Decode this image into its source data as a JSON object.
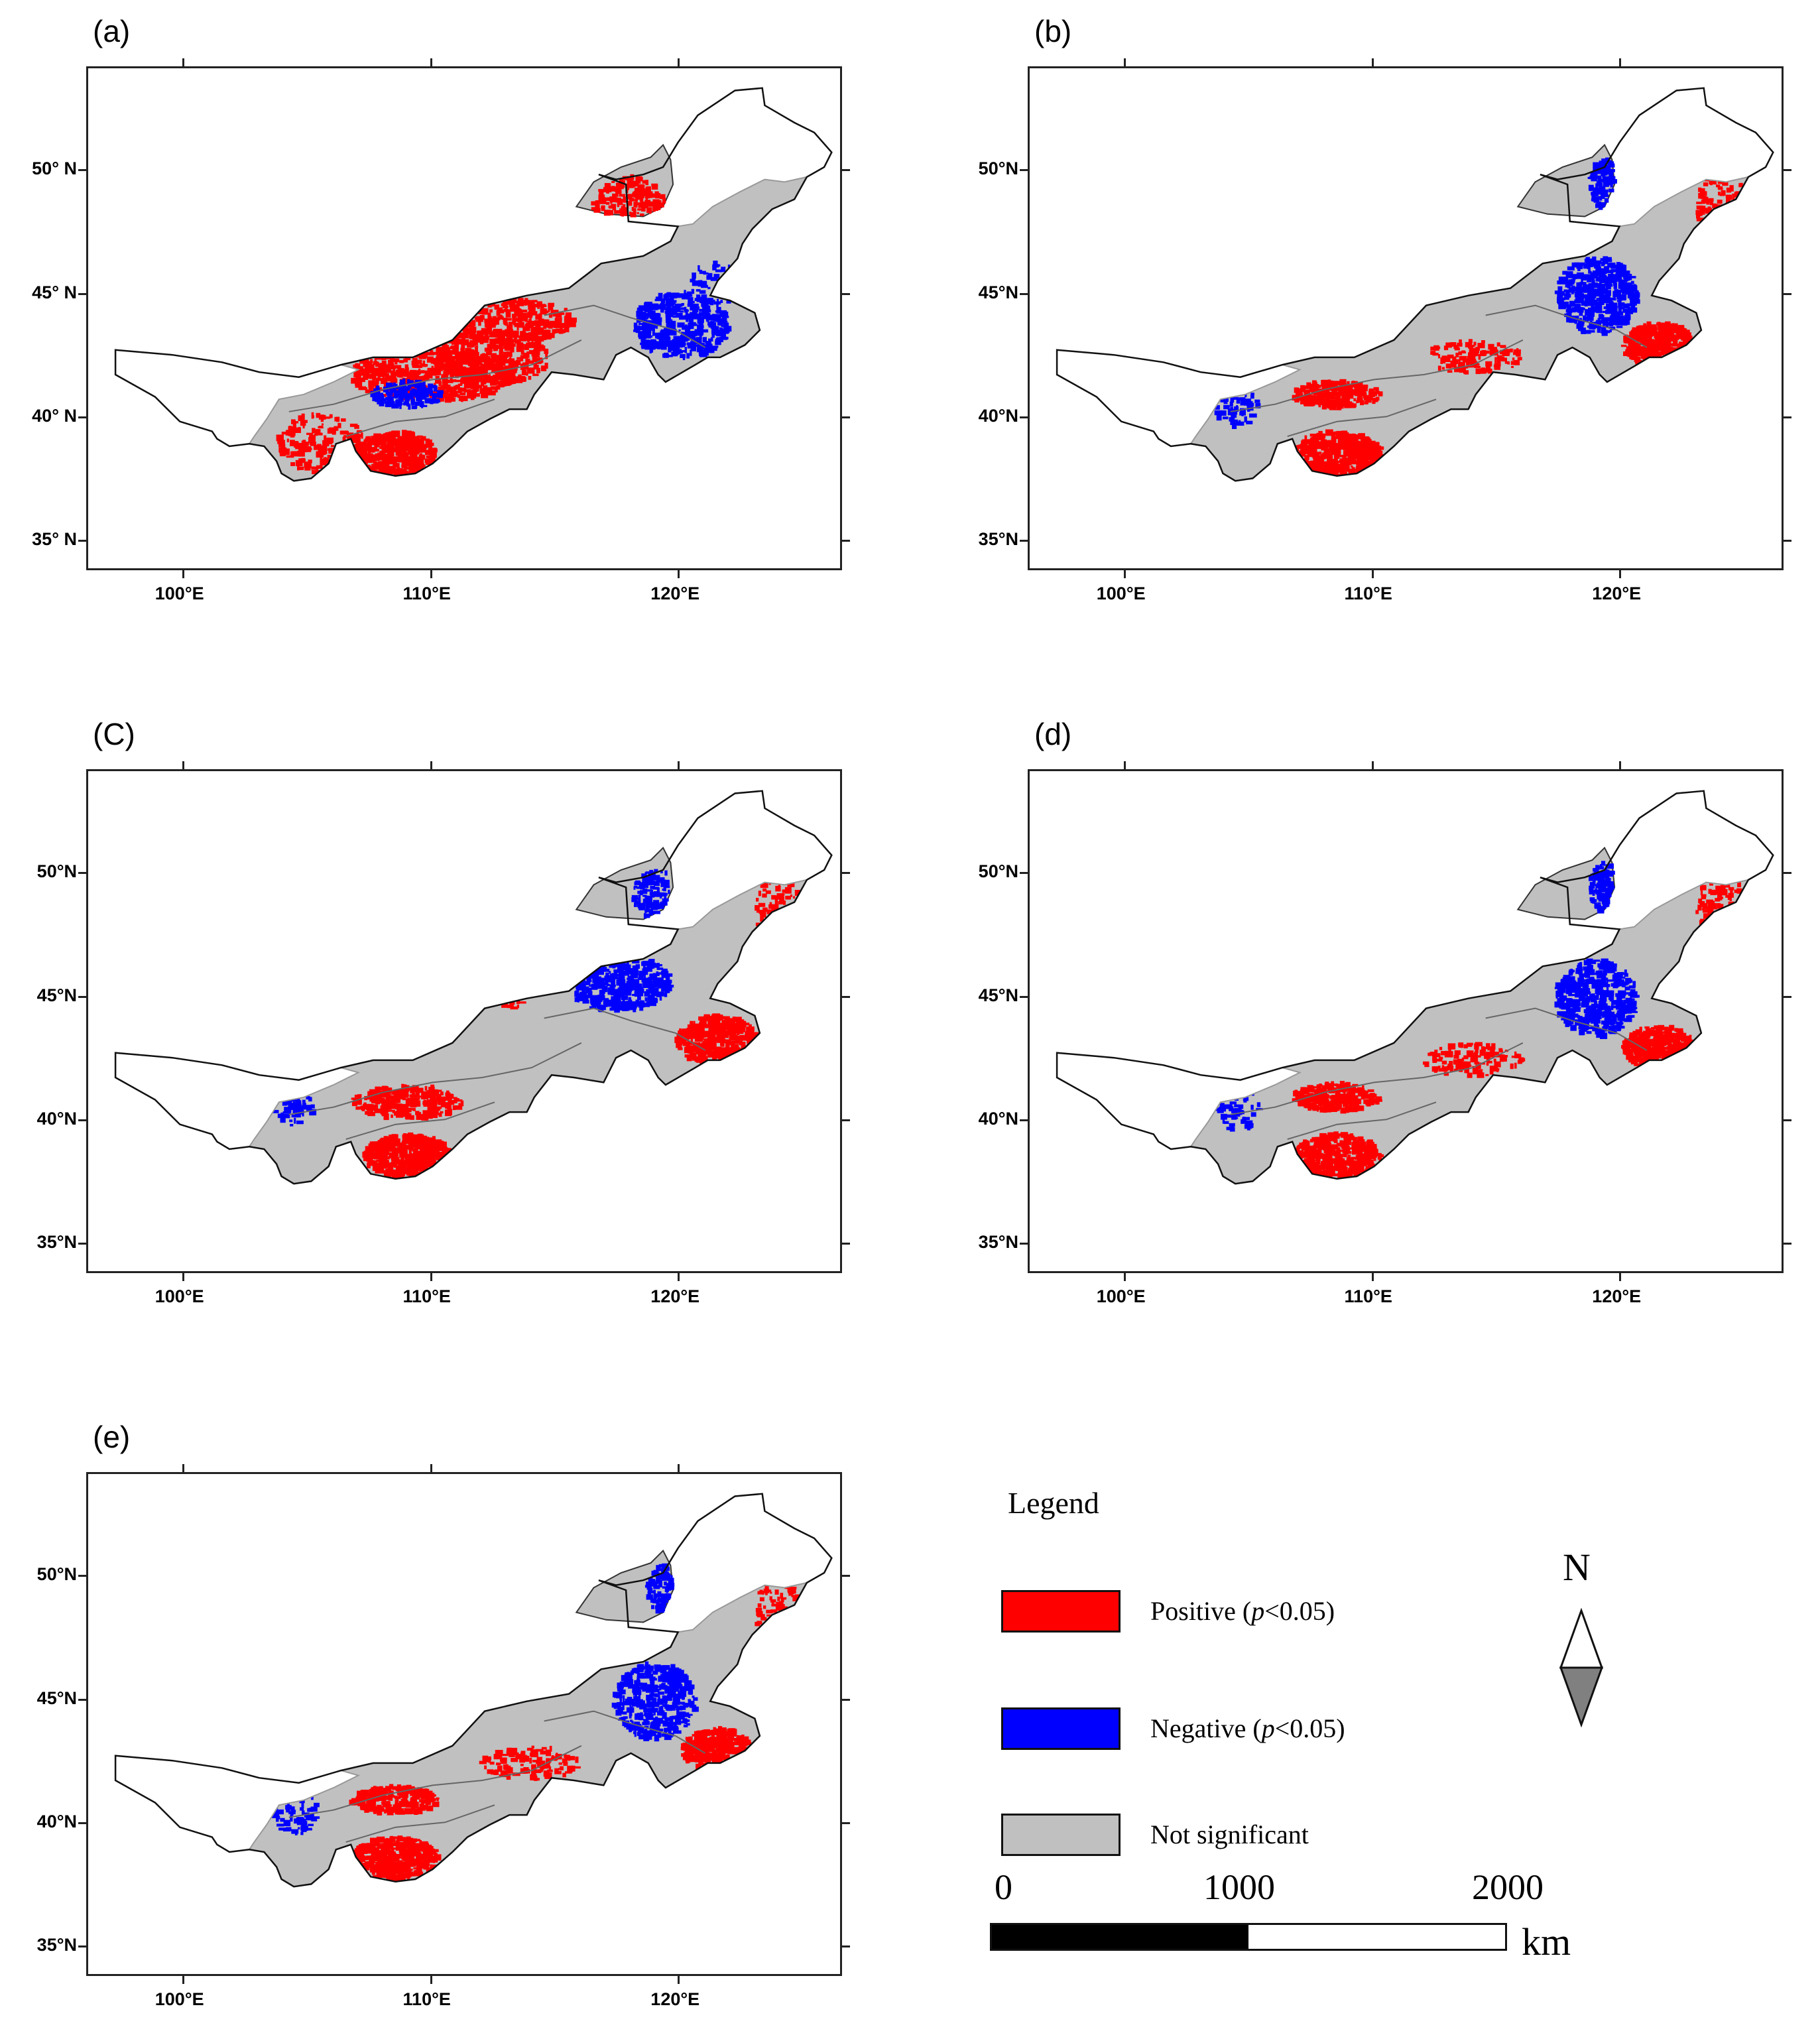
{
  "figure": {
    "panels": [
      {
        "id": "a",
        "label": "(a)",
        "pattern": "red-heavy"
      },
      {
        "id": "b",
        "label": "(b)",
        "pattern": "mixed"
      },
      {
        "id": "c",
        "label": "(C)",
        "pattern": "blue-center"
      },
      {
        "id": "d",
        "label": "(d)",
        "pattern": "mixed"
      },
      {
        "id": "e",
        "label": "(e)",
        "pattern": "mixed"
      }
    ],
    "lat_labels_a": [
      "50°  N",
      "45°  N",
      "40°  N",
      "35° N"
    ],
    "lat_labels": [
      "50°N",
      "45°N",
      "40°N",
      "35°N"
    ],
    "lon_labels": [
      "100°E",
      "110°E",
      "120°E"
    ]
  },
  "legend": {
    "title": "Legend",
    "items": [
      {
        "label_main": "Positive (",
        "label_p": "p",
        "label_end": "<0.05)",
        "color": "#ff0000"
      },
      {
        "label_main": "Negative (",
        "label_p": "p",
        "label_end": "<0.05)",
        "color": "#0000ff"
      },
      {
        "label_main": "Not significant",
        "label_p": "",
        "label_end": "",
        "color": "#c0c0c0"
      }
    ]
  },
  "north_arrow": {
    "letter": "N"
  },
  "scale_bar": {
    "ticks": [
      "0",
      "1000",
      "2000"
    ],
    "unit": "km"
  },
  "colors": {
    "positive": "#ff0000",
    "negative": "#0000ff",
    "not_significant": "#c0c0c0",
    "outline": "#111111"
  }
}
